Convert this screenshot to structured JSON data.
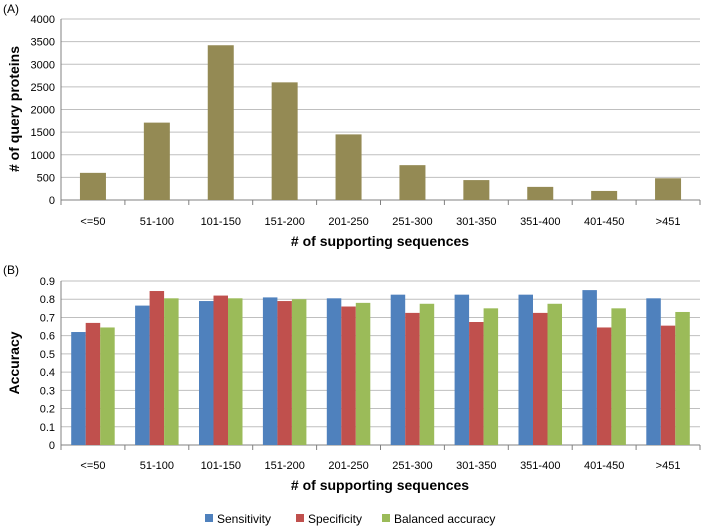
{
  "chart_data": [
    {
      "type": "bar",
      "panel_label": "(A)",
      "title": "",
      "xlabel": "# of supporting sequences",
      "ylabel": "# of query proteins",
      "categories": [
        "<=50",
        "51-100",
        "101-150",
        "151-200",
        "201-250",
        "251-300",
        "301-350",
        "351-400",
        "401-450",
        ">451"
      ],
      "series": [
        {
          "name": "# of query proteins",
          "color": "#948A54",
          "values": [
            600,
            1710,
            3420,
            2600,
            1450,
            770,
            440,
            290,
            200,
            480
          ]
        }
      ],
      "ylim": [
        0,
        4000
      ],
      "yticks": [
        0,
        500,
        1000,
        1500,
        2000,
        2500,
        3000,
        3500,
        4000
      ],
      "legend": "none"
    },
    {
      "type": "bar",
      "panel_label": "(B)",
      "title": "",
      "xlabel": "# of supporting sequences",
      "ylabel": "Accuracy",
      "categories": [
        "<=50",
        "51-100",
        "101-150",
        "151-200",
        "201-250",
        "251-300",
        "301-350",
        "351-400",
        "401-450",
        ">451"
      ],
      "series": [
        {
          "name": "Sensitivity",
          "color": "#4F81BD",
          "values": [
            0.62,
            0.765,
            0.79,
            0.81,
            0.805,
            0.825,
            0.825,
            0.825,
            0.85,
            0.805
          ]
        },
        {
          "name": "Specificity",
          "color": "#C0504D",
          "values": [
            0.67,
            0.845,
            0.82,
            0.79,
            0.76,
            0.725,
            0.675,
            0.725,
            0.645,
            0.655
          ]
        },
        {
          "name": "Balanced accuracy",
          "color": "#9BBB59",
          "values": [
            0.645,
            0.805,
            0.805,
            0.8,
            0.78,
            0.775,
            0.75,
            0.775,
            0.75,
            0.73
          ]
        }
      ],
      "ylim": [
        0,
        0.9
      ],
      "yticks": [
        "0",
        "0.1",
        "0.2",
        "0.3",
        "0.4",
        "0.5",
        "0.6",
        "0.7",
        "0.8",
        "0.9"
      ],
      "legend": "bottom"
    }
  ]
}
